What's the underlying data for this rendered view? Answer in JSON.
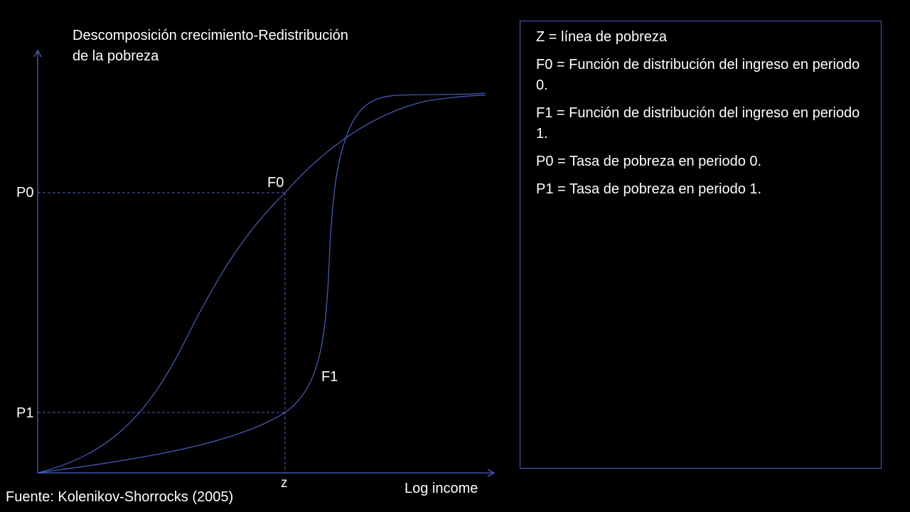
{
  "title": {
    "line1": "Descomposición crecimiento-Redistribución",
    "line2": "de la pobreza"
  },
  "labels": {
    "p0": "P0",
    "p1": "P1",
    "f0": "F0",
    "f1": "F1",
    "z": "z",
    "x_axis": "Log income"
  },
  "source": "Fuente: Kolenikov-Shorrocks (2005)",
  "legend": [
    "Z = línea de pobreza",
    "F0 = Función de distribución del ingreso en periodo 0.",
    "F1 = Función de distribución del ingreso en periodo 1.",
    "P0 = Tasa de pobreza en periodo 0.",
    "P1 = Tasa de pobreza en periodo 1."
  ],
  "colors": {
    "background": "#000000",
    "line": "#4a5fc1",
    "text": "#ffffff"
  }
}
